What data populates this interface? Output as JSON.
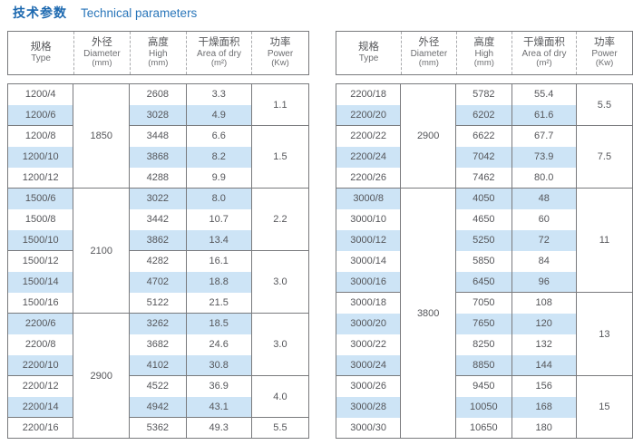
{
  "title": {
    "zh": "技术参数",
    "en": "Technical parameters"
  },
  "columns": [
    {
      "zh": "规格",
      "en": "Type",
      "unit": ""
    },
    {
      "zh": "外径",
      "en": "Diameter",
      "unit": "(mm)"
    },
    {
      "zh": "高度",
      "en": "High",
      "unit": "(mm)"
    },
    {
      "zh": "干燥面积",
      "en": "Area of dry",
      "unit": "(m²)"
    },
    {
      "zh": "功率",
      "en": "Power",
      "unit": "(Kw)"
    }
  ],
  "colors": {
    "title_blue": "#1d69b0",
    "row_highlight": "#cde4f6",
    "border_gray": "#797a7d",
    "text_gray": "#58595b"
  },
  "tables": [
    {
      "name": "left",
      "rows": [
        {
          "type": "1200/4",
          "high": "2608",
          "area": "3.3"
        },
        {
          "type": "1200/6",
          "high": "3028",
          "area": "4.9"
        },
        {
          "type": "1200/8",
          "high": "3448",
          "area": "6.6"
        },
        {
          "type": "1200/10",
          "high": "3868",
          "area": "8.2"
        },
        {
          "type": "1200/12",
          "high": "4288",
          "area": "9.9"
        },
        {
          "type": "1500/6",
          "high": "3022",
          "area": "8.0"
        },
        {
          "type": "1500/8",
          "high": "3442",
          "area": "10.7"
        },
        {
          "type": "1500/10",
          "high": "3862",
          "area": "13.4"
        },
        {
          "type": "1500/12",
          "high": "4282",
          "area": "16.1"
        },
        {
          "type": "1500/14",
          "high": "4702",
          "area": "18.8"
        },
        {
          "type": "1500/16",
          "high": "5122",
          "area": "21.5"
        },
        {
          "type": "2200/6",
          "high": "3262",
          "area": "18.5"
        },
        {
          "type": "2200/8",
          "high": "3682",
          "area": "24.6"
        },
        {
          "type": "2200/10",
          "high": "4102",
          "area": "30.8"
        },
        {
          "type": "2200/12",
          "high": "4522",
          "area": "36.9"
        },
        {
          "type": "2200/14",
          "high": "4942",
          "area": "43.1"
        },
        {
          "type": "2200/16",
          "high": "5362",
          "area": "49.3"
        }
      ],
      "diameter_groups": [
        {
          "value": "1850",
          "start": 0,
          "span": 5
        },
        {
          "value": "2100",
          "start": 5,
          "span": 6
        },
        {
          "value": "2900",
          "start": 11,
          "span": 6
        }
      ],
      "power_groups": [
        {
          "value": "1.1",
          "start": 0,
          "span": 2
        },
        {
          "value": "1.5",
          "start": 2,
          "span": 3
        },
        {
          "value": "2.2",
          "start": 5,
          "span": 3
        },
        {
          "value": "3.0",
          "start": 8,
          "span": 3
        },
        {
          "value": "3.0",
          "start": 11,
          "span": 3
        },
        {
          "value": "4.0",
          "start": 14,
          "span": 2
        },
        {
          "value": "5.5",
          "start": 16,
          "span": 1
        }
      ]
    },
    {
      "name": "right",
      "rows": [
        {
          "type": "2200/18",
          "high": "5782",
          "area": "55.4"
        },
        {
          "type": "2200/20",
          "high": "6202",
          "area": "61.6"
        },
        {
          "type": "2200/22",
          "high": "6622",
          "area": "67.7"
        },
        {
          "type": "2200/24",
          "high": "7042",
          "area": "73.9"
        },
        {
          "type": "2200/26",
          "high": "7462",
          "area": "80.0"
        },
        {
          "type": "3000/8",
          "high": "4050",
          "area": "48"
        },
        {
          "type": "3000/10",
          "high": "4650",
          "area": "60"
        },
        {
          "type": "3000/12",
          "high": "5250",
          "area": "72"
        },
        {
          "type": "3000/14",
          "high": "5850",
          "area": "84"
        },
        {
          "type": "3000/16",
          "high": "6450",
          "area": "96"
        },
        {
          "type": "3000/18",
          "high": "7050",
          "area": "108"
        },
        {
          "type": "3000/20",
          "high": "7650",
          "area": "120"
        },
        {
          "type": "3000/22",
          "high": "8250",
          "area": "132"
        },
        {
          "type": "3000/24",
          "high": "8850",
          "area": "144"
        },
        {
          "type": "3000/26",
          "high": "9450",
          "area": "156"
        },
        {
          "type": "3000/28",
          "high": "10050",
          "area": "168"
        },
        {
          "type": "3000/30",
          "high": "10650",
          "area": "180"
        }
      ],
      "diameter_groups": [
        {
          "value": "2900",
          "start": 0,
          "span": 5
        },
        {
          "value": "3800",
          "start": 5,
          "span": 12
        }
      ],
      "power_groups": [
        {
          "value": "5.5",
          "start": 0,
          "span": 2
        },
        {
          "value": "7.5",
          "start": 2,
          "span": 3
        },
        {
          "value": "11",
          "start": 5,
          "span": 5
        },
        {
          "value": "13",
          "start": 10,
          "span": 4
        },
        {
          "value": "15",
          "start": 14,
          "span": 3
        }
      ]
    }
  ]
}
